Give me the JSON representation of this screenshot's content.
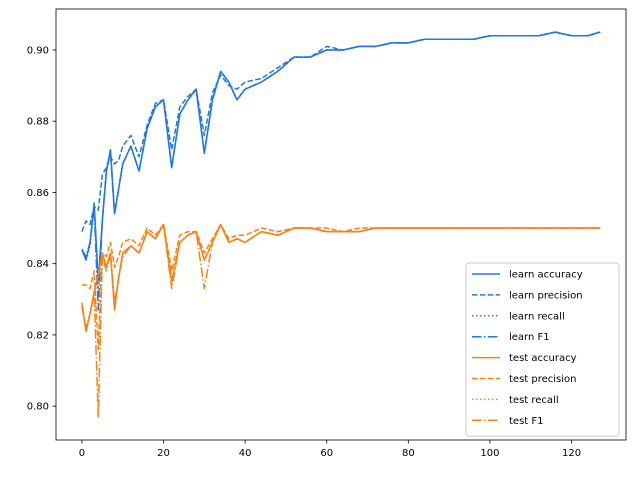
{
  "chart_data": {
    "type": "line",
    "title": "",
    "xlabel": "",
    "ylabel": "",
    "xlim": [
      -6.35,
      133.35
    ],
    "ylim": [
      0.7905,
      0.9115
    ],
    "xticks": [
      0,
      20,
      40,
      60,
      80,
      100,
      120
    ],
    "yticks": [
      0.8,
      0.82,
      0.84,
      0.86,
      0.88,
      0.9
    ],
    "ytick_labels": [
      "0.80",
      "0.82",
      "0.84",
      "0.86",
      "0.88",
      "0.90"
    ],
    "grid": false,
    "legend_position": "lower-right",
    "colors": {
      "learn": "#1f77e4",
      "test": "#ff7f0e"
    },
    "series": [
      {
        "name": "learn accuracy",
        "group": "learn",
        "style": "solid",
        "x": [
          0,
          1,
          2,
          3,
          4,
          5,
          6,
          7,
          8,
          9,
          10,
          12,
          14,
          16,
          18,
          20,
          22,
          24,
          26,
          28,
          30,
          32,
          34,
          36,
          38,
          40,
          44,
          48,
          52,
          56,
          60,
          64,
          68,
          72,
          76,
          80,
          84,
          88,
          92,
          96,
          100,
          104,
          108,
          112,
          116,
          120,
          124,
          127
        ],
        "y": [
          0.844,
          0.841,
          0.846,
          0.857,
          0.835,
          0.852,
          0.866,
          0.872,
          0.854,
          0.861,
          0.868,
          0.873,
          0.866,
          0.878,
          0.884,
          0.886,
          0.867,
          0.882,
          0.886,
          0.889,
          0.871,
          0.886,
          0.894,
          0.891,
          0.886,
          0.889,
          0.891,
          0.894,
          0.898,
          0.898,
          0.9,
          0.9,
          0.901,
          0.901,
          0.902,
          0.902,
          0.903,
          0.903,
          0.903,
          0.903,
          0.904,
          0.904,
          0.904,
          0.904,
          0.905,
          0.904,
          0.904,
          0.905
        ]
      },
      {
        "name": "learn precision",
        "group": "learn",
        "style": "dashed",
        "x": [
          0,
          1,
          2,
          3,
          4,
          5,
          6,
          7,
          8,
          9,
          10,
          12,
          14,
          16,
          18,
          20,
          22,
          24,
          26,
          28,
          30,
          32,
          34,
          36,
          38,
          40,
          44,
          48,
          52,
          56,
          60,
          64,
          68,
          72,
          76,
          80,
          84,
          88,
          92,
          96,
          100,
          104,
          108,
          112,
          116,
          120,
          124,
          127
        ],
        "y": [
          0.849,
          0.852,
          0.851,
          0.856,
          0.855,
          0.865,
          0.867,
          0.87,
          0.868,
          0.869,
          0.873,
          0.876,
          0.87,
          0.879,
          0.885,
          0.886,
          0.872,
          0.884,
          0.887,
          0.889,
          0.876,
          0.888,
          0.893,
          0.89,
          0.889,
          0.891,
          0.892,
          0.895,
          0.898,
          0.898,
          0.901,
          0.9,
          0.901,
          0.901,
          0.902,
          0.902,
          0.903,
          0.903,
          0.903,
          0.903,
          0.904,
          0.904,
          0.904,
          0.904,
          0.905,
          0.904,
          0.904,
          0.905
        ]
      },
      {
        "name": "learn recall",
        "group": "learn",
        "style": "dotted",
        "x": [
          0,
          1,
          2,
          3,
          4,
          5,
          6,
          7,
          8,
          9,
          10,
          12,
          14,
          16,
          18,
          20,
          22,
          24,
          26,
          28,
          30,
          32,
          34,
          36,
          38,
          40,
          44,
          48,
          52,
          56,
          60,
          64,
          68,
          72,
          76,
          80,
          84,
          88,
          92,
          96,
          100,
          104,
          108,
          112,
          116,
          120,
          124,
          127
        ],
        "y": [
          0.844,
          0.841,
          0.845,
          0.857,
          0.833,
          0.852,
          0.866,
          0.872,
          0.854,
          0.861,
          0.868,
          0.873,
          0.866,
          0.878,
          0.884,
          0.886,
          0.867,
          0.882,
          0.886,
          0.889,
          0.871,
          0.886,
          0.894,
          0.891,
          0.886,
          0.889,
          0.891,
          0.894,
          0.898,
          0.898,
          0.9,
          0.9,
          0.901,
          0.901,
          0.902,
          0.902,
          0.903,
          0.903,
          0.903,
          0.903,
          0.904,
          0.904,
          0.904,
          0.904,
          0.905,
          0.904,
          0.904,
          0.905
        ]
      },
      {
        "name": "learn F1",
        "group": "learn",
        "style": "dashdot",
        "x": [
          0,
          1,
          2,
          3,
          4,
          5,
          6,
          7,
          8,
          9,
          10,
          12,
          14,
          16,
          18,
          20,
          22,
          24,
          26,
          28,
          30,
          32,
          34,
          36,
          38,
          40,
          44,
          48,
          52,
          56,
          60,
          64,
          68,
          72,
          76,
          80,
          84,
          88,
          92,
          96,
          100,
          104,
          108,
          112,
          116,
          120,
          124,
          127
        ],
        "y": [
          0.844,
          0.842,
          0.846,
          0.856,
          0.827,
          0.852,
          0.866,
          0.871,
          0.854,
          0.861,
          0.868,
          0.873,
          0.866,
          0.878,
          0.884,
          0.886,
          0.867,
          0.882,
          0.886,
          0.889,
          0.871,
          0.886,
          0.894,
          0.891,
          0.886,
          0.889,
          0.891,
          0.894,
          0.898,
          0.898,
          0.9,
          0.9,
          0.901,
          0.901,
          0.902,
          0.902,
          0.903,
          0.903,
          0.903,
          0.903,
          0.904,
          0.904,
          0.904,
          0.904,
          0.905,
          0.904,
          0.904,
          0.905
        ]
      },
      {
        "name": "test accuracy",
        "group": "test",
        "style": "solid",
        "x": [
          0,
          1,
          2,
          3,
          4,
          5,
          6,
          7,
          8,
          9,
          10,
          12,
          14,
          16,
          18,
          20,
          22,
          24,
          26,
          28,
          30,
          32,
          34,
          36,
          38,
          40,
          44,
          48,
          52,
          56,
          60,
          64,
          68,
          72,
          76,
          80,
          84,
          88,
          92,
          96,
          100,
          104,
          108,
          112,
          116,
          120,
          124,
          127
        ],
        "y": [
          0.829,
          0.821,
          0.826,
          0.832,
          0.837,
          0.843,
          0.839,
          0.843,
          0.827,
          0.836,
          0.843,
          0.845,
          0.843,
          0.849,
          0.847,
          0.851,
          0.835,
          0.846,
          0.848,
          0.849,
          0.841,
          0.846,
          0.851,
          0.846,
          0.847,
          0.846,
          0.849,
          0.848,
          0.85,
          0.85,
          0.849,
          0.849,
          0.849,
          0.85,
          0.85,
          0.85,
          0.85,
          0.85,
          0.85,
          0.85,
          0.85,
          0.85,
          0.85,
          0.85,
          0.85,
          0.85,
          0.85,
          0.85
        ]
      },
      {
        "name": "test precision",
        "group": "test",
        "style": "dashed",
        "x": [
          0,
          1,
          2,
          3,
          4,
          5,
          6,
          7,
          8,
          9,
          10,
          12,
          14,
          16,
          18,
          20,
          22,
          24,
          26,
          28,
          30,
          32,
          34,
          36,
          38,
          40,
          44,
          48,
          52,
          56,
          60,
          64,
          68,
          72,
          76,
          80,
          84,
          88,
          92,
          96,
          100,
          104,
          108,
          112,
          116,
          120,
          124,
          127
        ],
        "y": [
          0.834,
          0.834,
          0.833,
          0.838,
          0.816,
          0.843,
          0.842,
          0.846,
          0.839,
          0.842,
          0.846,
          0.847,
          0.845,
          0.85,
          0.848,
          0.851,
          0.838,
          0.848,
          0.849,
          0.849,
          0.843,
          0.847,
          0.851,
          0.847,
          0.848,
          0.848,
          0.85,
          0.849,
          0.85,
          0.85,
          0.85,
          0.849,
          0.85,
          0.85,
          0.85,
          0.85,
          0.85,
          0.85,
          0.85,
          0.85,
          0.85,
          0.85,
          0.85,
          0.85,
          0.85,
          0.85,
          0.85,
          0.85
        ]
      },
      {
        "name": "test recall",
        "group": "test",
        "style": "dotted",
        "x": [
          0,
          1,
          2,
          3,
          4,
          5,
          6,
          7,
          8,
          9,
          10,
          12,
          14,
          16,
          18,
          20,
          22,
          24,
          26,
          28,
          30,
          32,
          34,
          36,
          38,
          40,
          44,
          48,
          52,
          56,
          60,
          64,
          68,
          72,
          76,
          80,
          84,
          88,
          92,
          96,
          100,
          104,
          108,
          112,
          116,
          120,
          124,
          127
        ],
        "y": [
          0.829,
          0.821,
          0.826,
          0.832,
          0.835,
          0.843,
          0.839,
          0.843,
          0.827,
          0.836,
          0.843,
          0.845,
          0.843,
          0.849,
          0.847,
          0.851,
          0.835,
          0.846,
          0.848,
          0.849,
          0.841,
          0.846,
          0.851,
          0.846,
          0.847,
          0.846,
          0.849,
          0.848,
          0.85,
          0.85,
          0.849,
          0.849,
          0.849,
          0.85,
          0.85,
          0.85,
          0.85,
          0.85,
          0.85,
          0.85,
          0.85,
          0.85,
          0.85,
          0.85,
          0.85,
          0.85,
          0.85,
          0.85
        ]
      },
      {
        "name": "test F1",
        "group": "test",
        "style": "dashdot",
        "x": [
          0,
          1,
          2,
          3,
          4,
          5,
          6,
          7,
          8,
          9,
          10,
          12,
          14,
          16,
          18,
          20,
          22,
          24,
          26,
          28,
          30,
          32,
          34,
          36,
          38,
          40,
          44,
          48,
          52,
          56,
          60,
          64,
          68,
          72,
          76,
          80,
          84,
          88,
          92,
          96,
          100,
          104,
          108,
          112,
          116,
          120,
          124,
          127
        ],
        "y": [
          0.828,
          0.822,
          0.826,
          0.832,
          0.797,
          0.842,
          0.838,
          0.843,
          0.829,
          0.836,
          0.842,
          0.845,
          0.843,
          0.849,
          0.847,
          0.851,
          0.833,
          0.846,
          0.848,
          0.849,
          0.833,
          0.846,
          0.851,
          0.846,
          0.847,
          0.846,
          0.849,
          0.848,
          0.85,
          0.85,
          0.849,
          0.849,
          0.849,
          0.85,
          0.85,
          0.85,
          0.85,
          0.85,
          0.85,
          0.85,
          0.85,
          0.85,
          0.85,
          0.85,
          0.85,
          0.85,
          0.85,
          0.85
        ]
      }
    ]
  }
}
